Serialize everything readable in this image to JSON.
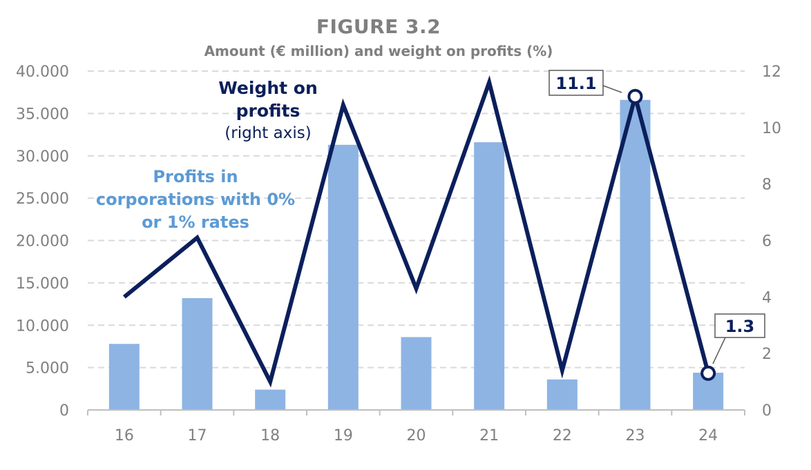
{
  "title": "FIGURE 3.2",
  "subtitle": "Amount (€ million) and weight on profits (%)",
  "annotations": {
    "profits": [
      "Profits in",
      "corporations with 0%",
      "or 1% rates"
    ],
    "weight_bold": [
      "Weight on",
      "profits"
    ],
    "weight_sub": "(right axis)"
  },
  "colors": {
    "bars": "#8eb4e3",
    "line": "#0b1f5c",
    "profits_text": "#5b9bd5",
    "tick_text": "#808080",
    "grid": "#d9d9d9"
  },
  "chart_data": {
    "type": "bar",
    "categories": [
      "16",
      "17",
      "18",
      "19",
      "20",
      "21",
      "22",
      "23",
      "24"
    ],
    "series": [
      {
        "name": "Profits in corporations with 0% or 1% rates",
        "type": "bar",
        "axis": "left",
        "values": [
          7800,
          13200,
          2400,
          31300,
          8600,
          31600,
          3600,
          36600,
          4400
        ]
      },
      {
        "name": "Weight on profits (right axis)",
        "type": "line",
        "axis": "right",
        "values": [
          4.0,
          6.1,
          1.0,
          10.8,
          4.3,
          11.6,
          1.4,
          11.1,
          1.3
        ]
      }
    ],
    "left_axis": {
      "min": 0,
      "max": 40000,
      "step": 5000,
      "tick_labels": [
        "0",
        "5.000",
        "10.000",
        "15.000",
        "20.000",
        "25.000",
        "30.000",
        "35.000",
        "40.000"
      ]
    },
    "right_axis": {
      "min": 0,
      "max": 12,
      "step": 2,
      "tick_labels": [
        "0",
        "2",
        "4",
        "6",
        "8",
        "10",
        "12"
      ]
    },
    "data_labels": [
      {
        "category": "23",
        "text": "11.1"
      },
      {
        "category": "24",
        "text": "1.3"
      }
    ],
    "grid": true
  }
}
